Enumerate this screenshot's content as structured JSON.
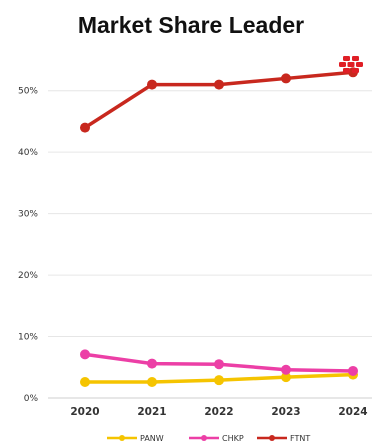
{
  "chart_data": {
    "type": "line",
    "title": "Market Share Leader",
    "xlabel": "",
    "ylabel": "",
    "categories": [
      "2020",
      "2021",
      "2022",
      "2023",
      "2024"
    ],
    "ylim": [
      0,
      55
    ],
    "yticks": [
      0,
      10,
      20,
      30,
      40,
      50
    ],
    "ytick_labels": [
      "0%",
      "10%",
      "20%",
      "30%",
      "40%",
      "50%"
    ],
    "grid": "horizontal",
    "legend_position": "bottom",
    "series": [
      {
        "name": "PANW",
        "color": "#f5c400",
        "values": [
          2.6,
          2.6,
          2.9,
          3.4,
          3.8
        ]
      },
      {
        "name": "CHKP",
        "color": "#ec3fa6",
        "values": [
          7.1,
          5.6,
          5.5,
          4.6,
          4.4
        ]
      },
      {
        "name": "FTNT",
        "color": "#c8281e",
        "values": [
          44,
          51,
          51,
          52,
          53
        ]
      }
    ]
  },
  "logo": {
    "name": "fortinet-logo-icon",
    "color": "#e01f26"
  }
}
